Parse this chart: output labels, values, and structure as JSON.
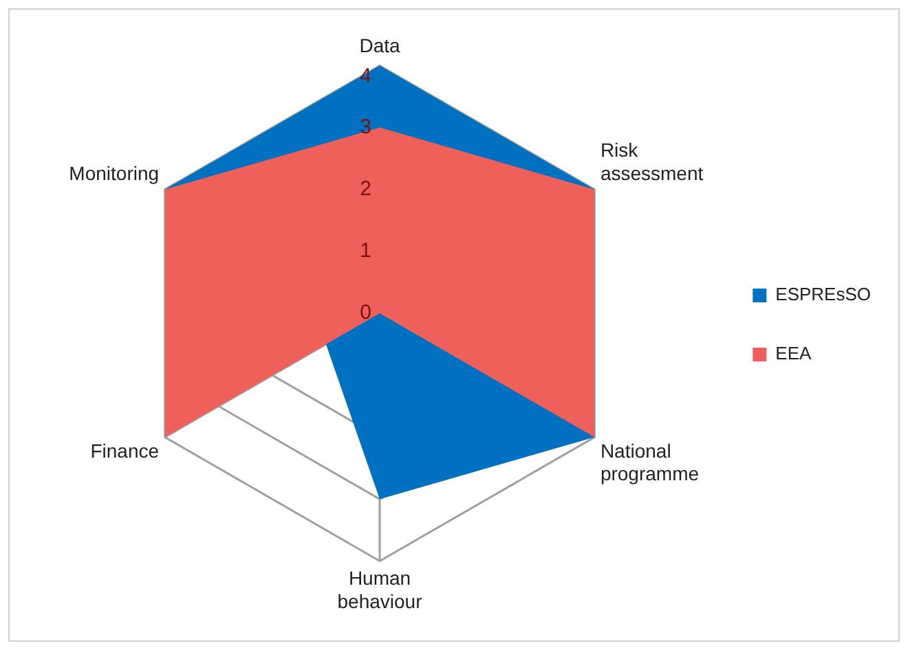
{
  "chart_data": {
    "type": "radar",
    "categories": [
      "Data",
      "Risk assessment",
      "National programme",
      "Human behaviour",
      "Finance",
      "Monitoring"
    ],
    "series": [
      {
        "name": "ESPREsSO",
        "color": "#0070c0",
        "values": [
          4,
          4,
          4,
          3,
          1,
          4
        ]
      },
      {
        "name": "EEA",
        "color": "#f0605a",
        "values": [
          3,
          4,
          4,
          0,
          4,
          4
        ]
      }
    ],
    "ylim": [
      0,
      4
    ],
    "yticks": [
      0,
      1,
      2,
      3,
      4
    ],
    "grid": true,
    "legend": "right"
  }
}
